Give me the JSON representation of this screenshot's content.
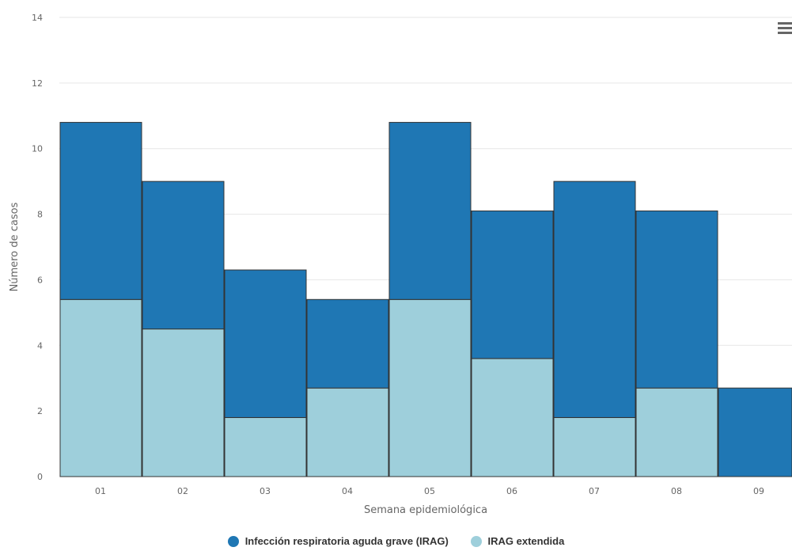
{
  "chart_data": {
    "type": "bar",
    "stacked": true,
    "categories": [
      "01",
      "02",
      "03",
      "04",
      "05",
      "06",
      "07",
      "08",
      "09"
    ],
    "series": [
      {
        "name": "IRAG extendida",
        "color": "#9ecfdb",
        "values": [
          5.4,
          4.5,
          1.8,
          2.7,
          5.4,
          3.6,
          1.8,
          2.7,
          0
        ]
      },
      {
        "name": "Infección respiratoria aguda grave (IRAG)",
        "color": "#1f77b4",
        "values": [
          5.4,
          4.5,
          4.5,
          2.7,
          5.4,
          4.5,
          7.2,
          5.4,
          2.7
        ]
      }
    ],
    "xlabel": "Semana epidemiológica",
    "ylabel": "Número de casos",
    "ylim": [
      0,
      14
    ],
    "yticks": [
      0,
      2,
      4,
      6,
      8,
      10,
      12,
      14
    ],
    "grid": true,
    "legend_position": "bottom"
  },
  "legend": {
    "items": [
      {
        "label": "Infección respiratoria aguda grave (IRAG)",
        "color": "#1f77b4"
      },
      {
        "label": "IRAG extendida",
        "color": "#9ecfdb"
      }
    ]
  },
  "menu": {
    "icon": "hamburger-menu-icon"
  }
}
